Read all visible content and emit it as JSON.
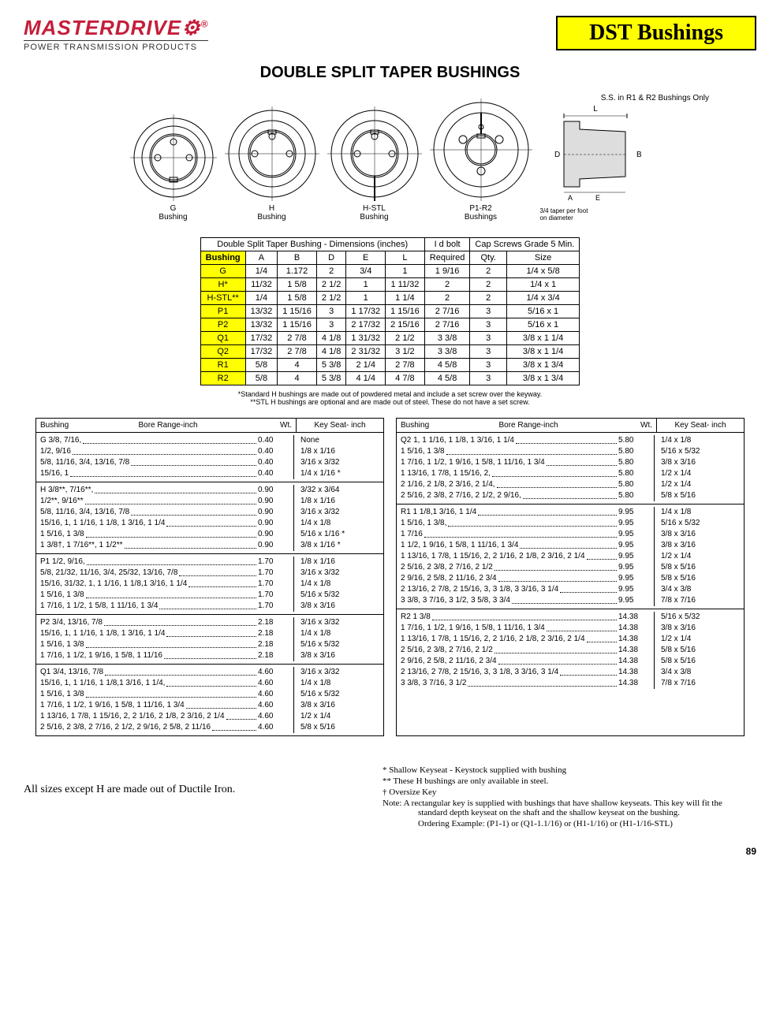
{
  "logo": {
    "main": "MASTERDRIVE",
    "reg": "®",
    "sub": "POWER TRANSMISSION PRODUCTS"
  },
  "title_box": "DST Bushings",
  "page_title": "DOUBLE SPLIT TAPER BUSHINGS",
  "ss_note": "S.S. in R1 & R2 Bushings Only",
  "diagram_labels": {
    "g": "G\nBushing",
    "h": "H\nBushing",
    "hstl": "H-STL\nBushing",
    "p1r2": "P1-R2\nBushings",
    "taper": "3/4 taper per foot\non diameter"
  },
  "dim_header": {
    "span1": "Double Split Taper Bushing - Dimensions (inches)",
    "span2": "I d bolt",
    "span3": "Cap Screws Grade 5 Min."
  },
  "dim_cols": [
    "Bushing",
    "A",
    "B",
    "D",
    "E",
    "L",
    "Required",
    "Qty.",
    "Size"
  ],
  "dim_rows": [
    {
      "b": "G",
      "a": "1/4",
      "bb": "1.172",
      "d": "2",
      "e": "3/4",
      "l": "1",
      "req": "1 9/16",
      "qty": "2",
      "size": "1/4 x 5/8"
    },
    {
      "b": "H*",
      "a": "11/32",
      "bb": "1 5/8",
      "d": "2 1/2",
      "e": "1",
      "l": "1 11/32",
      "req": "2",
      "qty": "2",
      "size": "1/4 x 1"
    },
    {
      "b": "H-STL**",
      "a": "1/4",
      "bb": "1 5/8",
      "d": "2 1/2",
      "e": "1",
      "l": "1 1/4",
      "req": "2",
      "qty": "2",
      "size": "1/4 x 3/4"
    },
    {
      "b": "P1",
      "a": "13/32",
      "bb": "1 15/16",
      "d": "3",
      "e": "1 17/32",
      "l": "1 15/16",
      "req": "2 7/16",
      "qty": "3",
      "size": "5/16 x 1"
    },
    {
      "b": "P2",
      "a": "13/32",
      "bb": "1 15/16",
      "d": "3",
      "e": "2 17/32",
      "l": "2 15/16",
      "req": "2 7/16",
      "qty": "3",
      "size": "5/16 x 1"
    },
    {
      "b": "Q1",
      "a": "17/32",
      "bb": "2 7/8",
      "d": "4 1/8",
      "e": "1 31/32",
      "l": "2 1/2",
      "req": "3 3/8",
      "qty": "3",
      "size": "3/8 x 1 1/4"
    },
    {
      "b": "Q2",
      "a": "17/32",
      "bb": "2 7/8",
      "d": "4 1/8",
      "e": "2 31/32",
      "l": "3 1/2",
      "req": "3 3/8",
      "qty": "3",
      "size": "3/8 x 1 1/4"
    },
    {
      "b": "R1",
      "a": "5/8",
      "bb": "4",
      "d": "5 3/8",
      "e": "2 1/4",
      "l": "2 7/8",
      "req": "4 5/8",
      "qty": "3",
      "size": "3/8 x 1 3/4"
    },
    {
      "b": "R2",
      "a": "5/8",
      "bb": "4",
      "d": "5 3/8",
      "e": "4 1/4",
      "l": "4 7/8",
      "req": "4 5/8",
      "qty": "3",
      "size": "3/8 x 1 3/4"
    }
  ],
  "footnote1": "*Standard H bushings are made out of powdered metal and include a set screw over the keyway.",
  "footnote2": "**STL H bushings are optional and are made out of steel. These do not have a set screw.",
  "bore_headers": {
    "bushing": "Bushing",
    "range": "Bore Range-inch",
    "wt": "Wt.",
    "key": "Key Seat- inch"
  },
  "bore_left": [
    {
      "rows": [
        {
          "l": "G  3/8, 7/16,",
          "wt": "0.40",
          "k": "None"
        },
        {
          "l": "1/2, 9/16",
          "wt": "0.40",
          "k": "1/8   x   1/16"
        },
        {
          "l": "5/8, 11/16, 3/4, 13/16, 7/8",
          "wt": "0.40",
          "k": "3/16  x   3/32"
        },
        {
          "l": "15/16, 1",
          "wt": "0.40",
          "k": "1/4   x   1/16  *"
        }
      ]
    },
    {
      "rows": [
        {
          "l": "H  3/8**, 7/16**,",
          "wt": "0.90",
          "k": "3/32  x   3/64"
        },
        {
          "l": "1/2**, 9/16**",
          "wt": "0.90",
          "k": "1/8   x   1/16"
        },
        {
          "l": "5/8, 11/16, 3/4, 13/16, 7/8",
          "wt": "0.90",
          "k": "3/16  x   3/32"
        },
        {
          "l": "15/16, 1, 1 1/16, 1 1/8, 1 3/16, 1 1/4",
          "wt": "0.90",
          "k": "1/4   x    1/8"
        },
        {
          "l": "1 5/16, 1 3/8",
          "wt": "0.90",
          "k": "5/16  x   1/16  *"
        },
        {
          "l": "1 3/8†, 1 7/16**, 1 1/2**",
          "wt": "0.90",
          "k": "3/8   x   1/16  *"
        }
      ]
    },
    {
      "rows": [
        {
          "l": "P1 1/2, 9/16,",
          "wt": "1.70",
          "k": "1/8   x   1/16"
        },
        {
          "l": "5/8, 21/32, 11/16, 3/4, 25/32, 13/16, 7/8",
          "wt": "1.70",
          "k": "3/16  x   3/32"
        },
        {
          "l": "15/16, 31/32, 1, 1 1/16, 1 1/8,1 3/16, 1 1/4",
          "wt": "1.70",
          "k": "1/4   x    1/8"
        },
        {
          "l": "1 5/16, 1 3/8",
          "wt": "1.70",
          "k": "5/16  x   5/32"
        },
        {
          "l": "1 7/16, 1 1/2, 1 5/8, 1 11/16, 1 3/4",
          "wt": "1.70",
          "k": "3/8   x   3/16"
        }
      ]
    },
    {
      "rows": [
        {
          "l": "P2 3/4, 13/16, 7/8",
          "wt": "2.18",
          "k": "3/16  x   3/32"
        },
        {
          "l": "15/16, 1, 1 1/16, 1 1/8,  1 3/16, 1 1/4",
          "wt": "2.18",
          "k": "1/4   x    1/8"
        },
        {
          "l": "1 5/16, 1 3/8",
          "wt": "2.18",
          "k": "5/16  x   5/32"
        },
        {
          "l": "1 7/16, 1 1/2, 1 9/16, 1 5/8, 1 11/16",
          "wt": "2.18",
          "k": "3/8   x   3/16"
        }
      ]
    },
    {
      "rows": [
        {
          "l": "Q1 3/4, 13/16, 7/8",
          "wt": "4.60",
          "k": "3/16  x   3/32"
        },
        {
          "l": "15/16, 1, 1 1/16, 1 1/8,1 3/16, 1 1/4,",
          "wt": "4.60",
          "k": "1/4   x    1/8"
        },
        {
          "l": "1 5/16, 1 3/8",
          "wt": "4.60",
          "k": "5/16  x   5/32"
        },
        {
          "l": "1 7/16, 1 1/2, 1 9/16, 1 5/8, 1 11/16, 1 3/4",
          "wt": "4.60",
          "k": "3/8   x   3/16"
        },
        {
          "l": "1 13/16, 1 7/8, 1 15/16, 2, 2 1/16, 2 1/8, 2 3/16, 2 1/4",
          "wt": "4.60",
          "k": "1/2   x    1/4"
        },
        {
          "l": "2 5/16, 2 3/8, 2 7/16, 2 1/2, 2 9/16, 2 5/8, 2 11/16",
          "wt": "4.60",
          "k": "5/8   x   5/16"
        }
      ]
    }
  ],
  "bore_right": [
    {
      "rows": [
        {
          "l": "Q2 1, 1 1/16, 1 1/8, 1 3/16, 1 1/4",
          "wt": "5.80",
          "k": "1/4    x    1/8"
        },
        {
          "l": "1 5/16, 1 3/8",
          "wt": "5.80",
          "k": "5/16   x   5/32"
        },
        {
          "l": "1 7/16, 1 1/2, 1 9/16, 1 5/8, 1 11/16, 1 3/4",
          "wt": "5.80",
          "k": "3/8    x   3/16"
        },
        {
          "l": "1 13/16, 1 7/8, 1 15/16, 2,",
          "wt": "5.80",
          "k": "1/2    x    1/4"
        },
        {
          "l": "2 1/16, 2 1/8, 2 3/16, 2 1/4,",
          "wt": "5.80",
          "k": "1/2    x    1/4"
        },
        {
          "l": "2 5/16, 2 3/8, 2 7/16, 2 1/2, 2 9/16,",
          "wt": "5.80",
          "k": "5/8    x   5/16"
        }
      ]
    },
    {
      "rows": [
        {
          "l": "R1 1 1/8,1  3/16, 1 1/4",
          "wt": "9.95",
          "k": "1/4    x    1/8"
        },
        {
          "l": "1 5/16, 1 3/8,",
          "wt": "9.95",
          "k": "5/16   x   5/32"
        },
        {
          "l": "1 7/16",
          "wt": "9.95",
          "k": "3/8    x   3/16"
        },
        {
          "l": "1 1/2, 1 9/16, 1 5/8, 1 11/16, 1 3/4",
          "wt": "9.95",
          "k": "3/8    x   3/16"
        },
        {
          "l": "1 13/16, 1 7/8, 1 15/16, 2, 2 1/16, 2 1/8, 2 3/16, 2 1/4",
          "wt": "9.95",
          "k": "1/2    x    1/4"
        },
        {
          "l": "2 5/16, 2 3/8, 2 7/16, 2 1/2",
          "wt": "9.95",
          "k": "5/8    x   5/16"
        },
        {
          "l": "2 9/16, 2 5/8, 2 11/16, 2 3/4",
          "wt": "9.95",
          "k": "5/8    x   5/16"
        },
        {
          "l": "2 13/16, 2 7/8, 2 15/16, 3, 3 1/8, 3 3/16, 3 1/4",
          "wt": "9.95",
          "k": "3/4    x    3/8"
        },
        {
          "l": "3 3/8, 3 7/16, 3 1/2, 3 5/8, 3 3/4",
          "wt": "9.95",
          "k": "7/8    x   7/16"
        }
      ]
    },
    {
      "rows": [
        {
          "l": "R2 1 3/8",
          "wt": "14.38",
          "k": "5/16   x   5/32"
        },
        {
          "l": "1 7/16, 1 1/2, 1 9/16, 1 5/8, 1 11/16, 1 3/4",
          "wt": "14.38",
          "k": "3/8    x   3/16"
        },
        {
          "l": "1 13/16, 1 7/8, 1 15/16, 2, 2 1/16, 2 1/8, 2 3/16, 2 1/4",
          "wt": "14.38",
          "k": "1/2    x    1/4"
        },
        {
          "l": "2 5/16, 2 3/8, 2 7/16, 2 1/2",
          "wt": "14.38",
          "k": "5/8    x   5/16"
        },
        {
          "l": "2 9/16, 2 5/8, 2 11/16, 2 3/4",
          "wt": "14.38",
          "k": "5/8    x   5/16"
        },
        {
          "l": "2 13/16, 2 7/8, 2 15/16, 3, 3 1/8, 3 3/16, 3 1/4",
          "wt": "14.38",
          "k": "3/4    x    3/8"
        },
        {
          "l": "3 3/8, 3 7/16, 3 1/2",
          "wt": "14.38",
          "k": "7/8    x   7/16"
        }
      ]
    }
  ],
  "notes": {
    "n1": "*   Shallow Keyseat - Keystock supplied with bushing",
    "n2": "**  These H bushings are only available in steel.",
    "n3": "†   Oversize Key",
    "n4": "Note:    A rectangular key is supplied with bushings that have shallow keyseats.  This key will fit the standard depth keyseat on the shaft and the shallow keyseat on the bushing.",
    "n5": "Ordering Example: (P1-1) or (Q1-1.1/16) or (H1-1/16) or (H1-1/16-STL)"
  },
  "ductile": "All sizes except H are made out of Ductile Iron.",
  "page_num": "89"
}
